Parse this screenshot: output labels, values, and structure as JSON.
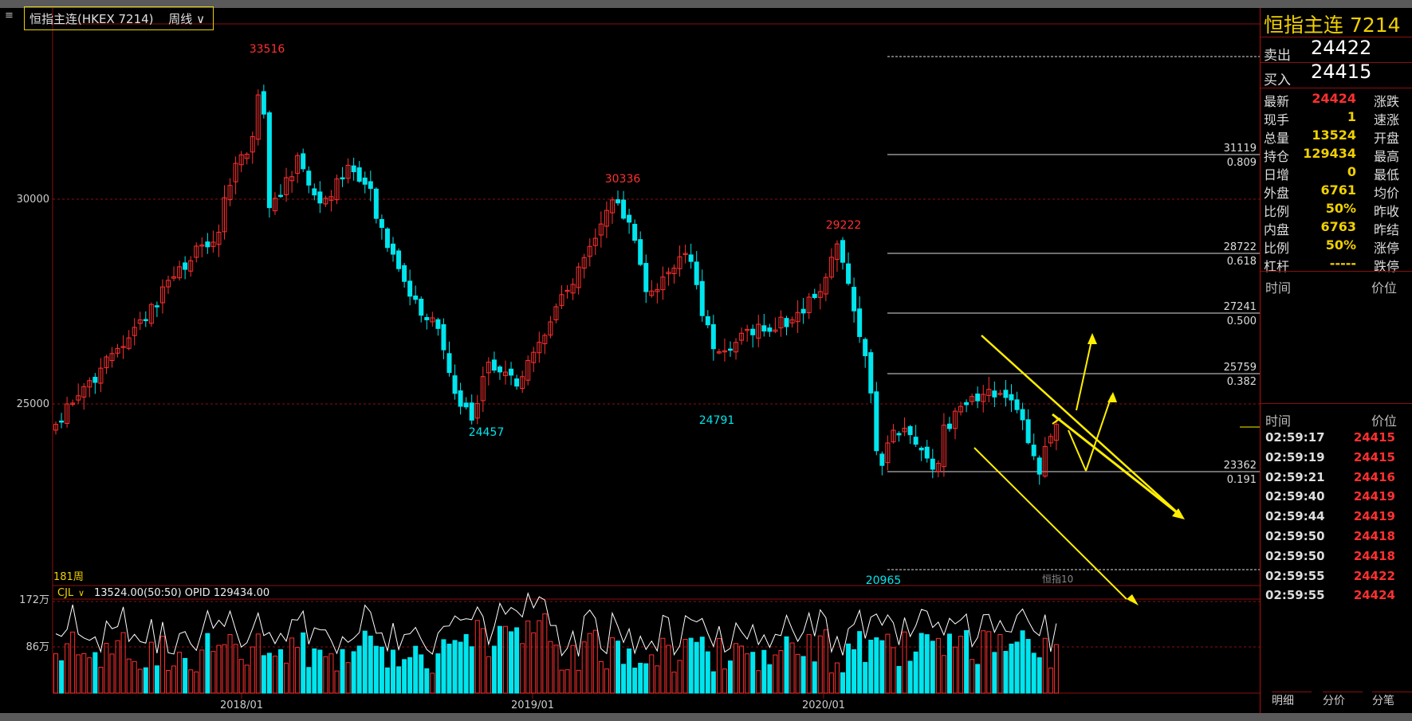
{
  "header": {
    "menu_icon": "bars-icon",
    "title": "恒指主连(HKEX 7214)",
    "timeframe": "周线",
    "dropdown_icon": "chevron-down-icon"
  },
  "colors": {
    "up": "#ff3030",
    "down": "#00e5ee",
    "accent": "#f0d000",
    "grid": "#8a1010",
    "ma": "#ffffff"
  },
  "chart": {
    "y_ticks": [
      "30000",
      "25000"
    ],
    "x_ticks": [
      "2018/01",
      "2019/01",
      "2020/01"
    ],
    "period_count": "181周",
    "indicator_label": "恒指10",
    "peaks": [
      {
        "label": "33516",
        "color": "up"
      },
      {
        "label": "30336",
        "color": "up"
      },
      {
        "label": "29222",
        "color": "up"
      },
      {
        "label": "24457",
        "color": "down"
      },
      {
        "label": "24791",
        "color": "down"
      },
      {
        "label": "20965",
        "color": "down"
      }
    ],
    "fib_levels": [
      {
        "price": "",
        "ratio": ""
      },
      {
        "price": "31119",
        "ratio": "0.809"
      },
      {
        "price": "28722",
        "ratio": "0.618"
      },
      {
        "price": "27241",
        "ratio": "0.500"
      },
      {
        "price": "25759",
        "ratio": "0.382"
      },
      {
        "price": "23362",
        "ratio": "0.191"
      },
      {
        "price": "",
        "ratio": ""
      }
    ]
  },
  "volume_pane": {
    "label": "CJL",
    "values_text": "13524.00(50:50)  OPID 129434.00",
    "y_ticks": [
      "172万",
      "86万"
    ]
  },
  "panel": {
    "title": "恒指主连  7214",
    "sell_label": "卖出",
    "sell_value": "24422",
    "buy_label": "买入",
    "buy_value": "24415",
    "grid": [
      {
        "label": "最新",
        "value": "24424",
        "right": "涨跌",
        "red": true
      },
      {
        "label": "现手",
        "value": "1",
        "right": "速涨"
      },
      {
        "label": "总量",
        "value": "13524",
        "right": "开盘"
      },
      {
        "label": "持仓",
        "value": "129434",
        "right": "最高"
      },
      {
        "label": "日增",
        "value": "0",
        "right": "最低"
      },
      {
        "label": "外盘",
        "value": "6761",
        "right": "均价"
      },
      {
        "label": "比例",
        "value": "50%",
        "right": "昨收"
      },
      {
        "label": "内盘",
        "value": "6763",
        "right": "昨结"
      },
      {
        "label": "比例",
        "value": "50%",
        "right": "涨停"
      },
      {
        "label": "杠杆",
        "value": "-----",
        "right": "跌停"
      }
    ],
    "section1": {
      "time": "时间",
      "price": "价位"
    },
    "section2": {
      "time": "时间",
      "price": "价位"
    },
    "ticks": [
      {
        "time": "02:59:17",
        "price": "24415"
      },
      {
        "time": "02:59:19",
        "price": "24415"
      },
      {
        "time": "02:59:21",
        "price": "24416"
      },
      {
        "time": "02:59:40",
        "price": "24419"
      },
      {
        "time": "02:59:44",
        "price": "24419"
      },
      {
        "time": "02:59:50",
        "price": "24418"
      },
      {
        "time": "02:59:50",
        "price": "24418"
      },
      {
        "time": "02:59:55",
        "price": "24422"
      },
      {
        "time": "02:59:55",
        "price": "24424"
      }
    ],
    "tabs": [
      "明细",
      "分价",
      "分笔"
    ]
  }
}
